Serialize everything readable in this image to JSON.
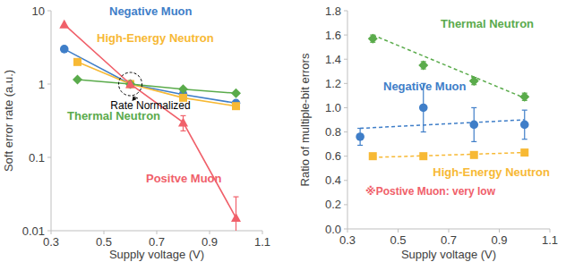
{
  "chart_data": [
    {
      "type": "line",
      "y_label": "Soft error rate (a.u.)",
      "x_label": "Supply voltage (V)",
      "log": "y",
      "xlim": [
        0.3,
        1.1
      ],
      "xticks": [
        0.3,
        0.5,
        0.7,
        0.9,
        1.1
      ],
      "ylim": [
        0.01,
        10
      ],
      "yticks": [
        0.01,
        0.1,
        1,
        10
      ],
      "grid": false,
      "annotations": [
        "Rate Normalized"
      ],
      "series": [
        {
          "name": "Negative Muon",
          "color": "#3f7ec8",
          "marker": "circle",
          "line_style": "solid",
          "x": [
            0.35,
            0.6,
            0.8,
            1.0
          ],
          "values": [
            3.0,
            1,
            0.72,
            0.55
          ]
        },
        {
          "name": "High-Energy Neutron",
          "color": "#f7b935",
          "marker": "square",
          "line_style": "solid",
          "x": [
            0.4,
            0.6,
            0.8,
            1.0
          ],
          "values": [
            2.0,
            1,
            0.65,
            0.5
          ]
        },
        {
          "name": "Thermal Neutron",
          "color": "#5aab4b",
          "marker": "diamond",
          "line_style": "solid",
          "x": [
            0.4,
            0.6,
            0.8,
            1.0
          ],
          "values": [
            1.15,
            1,
            0.85,
            0.75
          ]
        },
        {
          "name": "Positve Muon",
          "color": "#f0606a",
          "marker": "triangle",
          "line_style": "solid",
          "x": [
            0.35,
            0.6,
            0.8,
            1.0
          ],
          "values": [
            6.5,
            1,
            0.3,
            0.015
          ],
          "errors": [
            0,
            0,
            0.07,
            0.014
          ]
        }
      ]
    },
    {
      "type": "scatter",
      "y_label": "Ratio of multiple-bit errors",
      "x_label": "Supply voltage (V)",
      "xlim": [
        0.3,
        1.1
      ],
      "xticks": [
        0.3,
        0.5,
        0.7,
        0.9,
        1.1
      ],
      "ylim": [
        0,
        1.8
      ],
      "yticks": [
        {
          "value": 0,
          "label": "0.0"
        },
        0.2,
        0.4,
        0.6,
        0.8,
        {
          "value": 1,
          "label": "1.0"
        },
        1.2,
        1.4,
        1.6,
        1.8
      ],
      "grid": false,
      "annotations": [
        "※Postive Muon: very low"
      ],
      "series": [
        {
          "name": "Thermal Neutron",
          "color": "#5aab4b",
          "marker": "diamond",
          "line_style": "dashed",
          "x": [
            0.4,
            0.6,
            0.8,
            1.0
          ],
          "values": [
            1.57,
            1.35,
            1.22,
            1.09
          ],
          "errors": [
            0.03,
            0.03,
            0.03,
            0.03
          ],
          "trend": {
            "x": [
              0.4,
              1.0
            ],
            "values": [
              1.6,
              1.08
            ]
          }
        },
        {
          "name": "Negative Muon",
          "color": "#3f7ec8",
          "marker": "circle",
          "line_style": "dashed",
          "x": [
            0.35,
            0.6,
            0.8,
            1.0
          ],
          "values": [
            0.76,
            1.0,
            0.86,
            0.86
          ],
          "errors": [
            0.07,
            0.2,
            0.14,
            0.12
          ],
          "trend": {
            "x": [
              0.35,
              1.0
            ],
            "values": [
              0.83,
              0.9
            ]
          }
        },
        {
          "name": "High-Energy Neutron",
          "color": "#f7b935",
          "marker": "square",
          "line_style": "dashed",
          "x": [
            0.4,
            0.6,
            0.8,
            1.0
          ],
          "values": [
            0.6,
            0.6,
            0.61,
            0.63
          ],
          "errors": [
            0.02,
            0.02,
            0.02,
            0.02
          ],
          "trend": {
            "x": [
              0.4,
              1.0
            ],
            "values": [
              0.59,
              0.63
            ]
          }
        }
      ]
    }
  ]
}
